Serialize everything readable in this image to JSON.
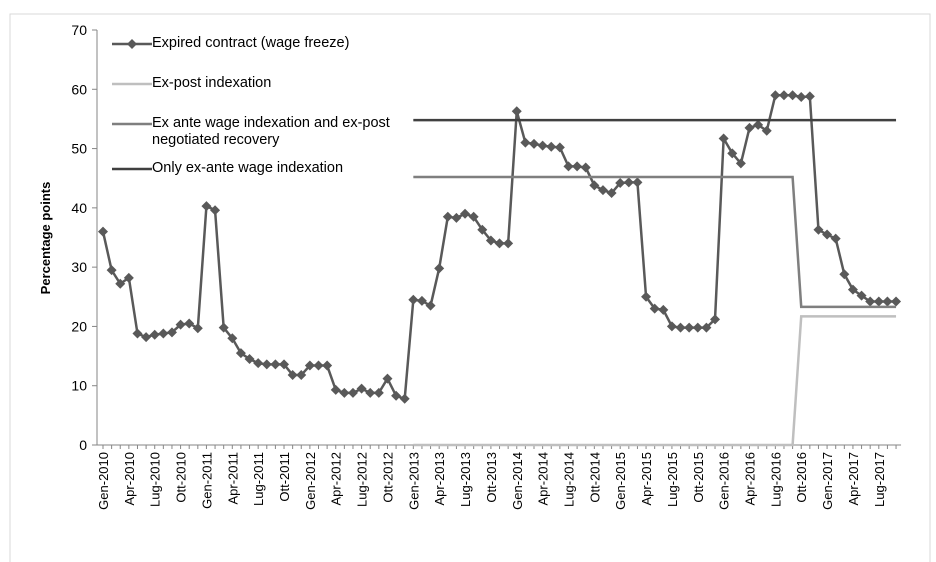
{
  "chart_data": {
    "type": "line",
    "y_label": "Percentage points",
    "categories": [
      "Gen-2010",
      null,
      null,
      "Apr-2010",
      null,
      null,
      "Lug-2010",
      null,
      null,
      "Ott-2010",
      null,
      null,
      "Gen-2011",
      null,
      null,
      "Apr-2011",
      null,
      null,
      "Lug-2011",
      null,
      null,
      "Ott-2011",
      null,
      null,
      "Gen-2012",
      null,
      null,
      "Apr-2012",
      null,
      null,
      "Lug-2012",
      null,
      null,
      "Ott-2012",
      null,
      null,
      "Gen-2013",
      null,
      null,
      "Apr-2013",
      null,
      null,
      "Lug-2013",
      null,
      null,
      "Ott-2013",
      null,
      null,
      "Gen-2014",
      null,
      null,
      "Apr-2014",
      null,
      null,
      "Lug-2014",
      null,
      null,
      "Ott-2014",
      null,
      null,
      "Gen-2015",
      null,
      null,
      "Apr-2015",
      null,
      null,
      "Lug-2015",
      null,
      null,
      "Ott-2015",
      null,
      null,
      "Gen-2016",
      null,
      null,
      "Apr-2016",
      null,
      null,
      "Lug-2016",
      null,
      null,
      "Ott-2016",
      null,
      null,
      "Gen-2017",
      null,
      null,
      "Apr-2017",
      null,
      null,
      "Lug-2017",
      null,
      null
    ],
    "series": [
      {
        "name": "Expired contract (wage freeze)",
        "color": "#595959",
        "marker": "diamond",
        "values": [
          36,
          29.5,
          27.2,
          28.2,
          18.8,
          18.2,
          18.6,
          18.8,
          19,
          20.3,
          20.5,
          19.7,
          40.3,
          39.6,
          19.8,
          18,
          15.5,
          14.5,
          13.8,
          13.6,
          13.6,
          13.6,
          11.8,
          11.8,
          13.4,
          13.4,
          13.4,
          9.3,
          8.8,
          8.8,
          9.5,
          8.8,
          8.8,
          11.2,
          8.3,
          7.8,
          24.5,
          24.3,
          23.5,
          29.8,
          38.5,
          38.3,
          39,
          38.5,
          36.3,
          34.5,
          34,
          34,
          56.3,
          51,
          50.8,
          50.5,
          50.3,
          50.2,
          47,
          47,
          46.8,
          43.8,
          43,
          42.5,
          44.2,
          44.3,
          44.3,
          25,
          23,
          22.8,
          20,
          19.8,
          19.8,
          19.8,
          19.8,
          21.2,
          51.7,
          49.2,
          47.5,
          53.5,
          54,
          53,
          59,
          59,
          59,
          58.7,
          58.8,
          36.3,
          35.5,
          34.8,
          28.8,
          26.2,
          25.2,
          24.2,
          24.2,
          24.2,
          24.2
        ]
      },
      {
        "name": "Ex-post indexation",
        "color": "#bfbfbf",
        "values": [
          null,
          null,
          null,
          null,
          null,
          null,
          null,
          null,
          null,
          null,
          null,
          null,
          null,
          null,
          null,
          null,
          null,
          null,
          null,
          null,
          null,
          null,
          null,
          null,
          null,
          null,
          null,
          null,
          null,
          null,
          null,
          null,
          null,
          null,
          null,
          null,
          0,
          0,
          0,
          0,
          0,
          0,
          0,
          0,
          0,
          0,
          0,
          0,
          0,
          0,
          0,
          0,
          0,
          0,
          0,
          0,
          0,
          0,
          0,
          0,
          0,
          0,
          0,
          0,
          0,
          0,
          0,
          0,
          0,
          0,
          0,
          0,
          0,
          0,
          0,
          0,
          0,
          0,
          0,
          0,
          0,
          21.7,
          21.7,
          21.7,
          21.7,
          21.7,
          21.7,
          21.7,
          21.7,
          21.7,
          21.7,
          21.7,
          21.7
        ]
      },
      {
        "name": "Ex ante wage indexation and ex-post negotiated recovery",
        "color": "#7f7f7f",
        "values": [
          null,
          null,
          null,
          null,
          null,
          null,
          null,
          null,
          null,
          null,
          null,
          null,
          null,
          null,
          null,
          null,
          null,
          null,
          null,
          null,
          null,
          null,
          null,
          null,
          null,
          null,
          null,
          null,
          null,
          null,
          null,
          null,
          null,
          null,
          null,
          null,
          45.2,
          45.2,
          45.2,
          45.2,
          45.2,
          45.2,
          45.2,
          45.2,
          45.2,
          45.2,
          45.2,
          45.2,
          45.2,
          45.2,
          45.2,
          45.2,
          45.2,
          45.2,
          45.2,
          45.2,
          45.2,
          45.2,
          45.2,
          45.2,
          45.2,
          45.2,
          45.2,
          45.2,
          45.2,
          45.2,
          45.2,
          45.2,
          45.2,
          45.2,
          45.2,
          45.2,
          45.2,
          45.2,
          45.2,
          45.2,
          45.2,
          45.2,
          45.2,
          45.2,
          45.2,
          23.3,
          23.3,
          23.3,
          23.3,
          23.3,
          23.3,
          23.3,
          23.3,
          23.3,
          23.3,
          23.3,
          23.3
        ]
      },
      {
        "name": "Only ex-ante wage indexation",
        "color": "#404040",
        "values": [
          null,
          null,
          null,
          null,
          null,
          null,
          null,
          null,
          null,
          null,
          null,
          null,
          null,
          null,
          null,
          null,
          null,
          null,
          null,
          null,
          null,
          null,
          null,
          null,
          null,
          null,
          null,
          null,
          null,
          null,
          null,
          null,
          null,
          null,
          null,
          null,
          54.8,
          54.8,
          54.8,
          54.8,
          54.8,
          54.8,
          54.8,
          54.8,
          54.8,
          54.8,
          54.8,
          54.8,
          54.8,
          54.8,
          54.8,
          54.8,
          54.8,
          54.8,
          54.8,
          54.8,
          54.8,
          54.8,
          54.8,
          54.8,
          54.8,
          54.8,
          54.8,
          54.8,
          54.8,
          54.8,
          54.8,
          54.8,
          54.8,
          54.8,
          54.8,
          54.8,
          54.8,
          54.8,
          54.8,
          54.8,
          54.8,
          54.8,
          54.8,
          54.8,
          54.8,
          54.8,
          54.8,
          54.8,
          54.8,
          54.8,
          54.8,
          54.8,
          54.8,
          54.8,
          54.8,
          54.8,
          54.8
        ]
      }
    ],
    "ylim": [
      0,
      70
    ],
    "yticks": [
      0,
      10,
      20,
      30,
      40,
      50,
      60,
      70
    ],
    "grid": false,
    "legend": "top-left"
  }
}
